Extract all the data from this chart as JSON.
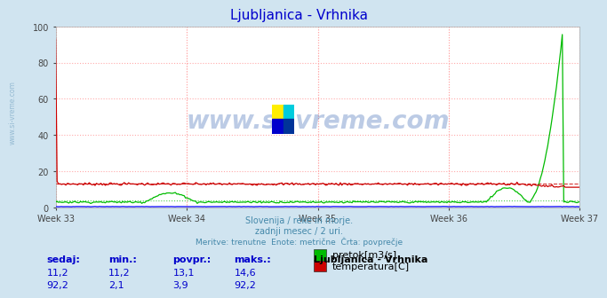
{
  "title": "Ljubljanica - Vrhnika",
  "title_color": "#0000cc",
  "bg_color": "#d0e4f0",
  "plot_bg_color": "#ffffff",
  "grid_color": "#ffaaaa",
  "grid_linestyle": ":",
  "n_points": 360,
  "temp_color": "#cc0000",
  "temp_avg": 13.1,
  "flow_color": "#00bb00",
  "flow_avg": 3.9,
  "height_color": "#0000ff",
  "ylim": [
    0,
    100
  ],
  "yticks": [
    0,
    20,
    40,
    60,
    80,
    100
  ],
  "week_labels": [
    "Week 33",
    "Week 34",
    "Week 35",
    "Week 36",
    "Week 37"
  ],
  "subtitle_lines": [
    "Slovenija / reke in morje.",
    "zadnji mesec / 2 uri.",
    "Meritve: trenutne  Enote: metrične  Črta: povprečje"
  ],
  "subtitle_color": "#4488aa",
  "watermark_text": "www.si-vreme.com",
  "watermark_color": "#2255aa",
  "watermark_alpha": 0.3,
  "left_label": "www.si-vreme.com",
  "left_label_color": "#6699bb",
  "table_headers": [
    "sedaj:",
    "min.:",
    "povpr.:",
    "maks.:"
  ],
  "table_row1": [
    "11,2",
    "11,2",
    "13,1",
    "14,6"
  ],
  "table_row2": [
    "92,2",
    "2,1",
    "3,9",
    "92,2"
  ],
  "table_header_color": "#0000cc",
  "table_value_color": "#0000cc",
  "legend_title": "Ljubljanica - Vrhnika",
  "legend_labels": [
    "temperatura[C]",
    "pretok[m3/s]"
  ],
  "legend_colors": [
    "#cc0000",
    "#00bb00"
  ],
  "logo_colors": {
    "top_left": "#ffee00",
    "bottom_left": "#0000cc",
    "top_right": "#00ccdd",
    "bottom_right": "#003399"
  }
}
